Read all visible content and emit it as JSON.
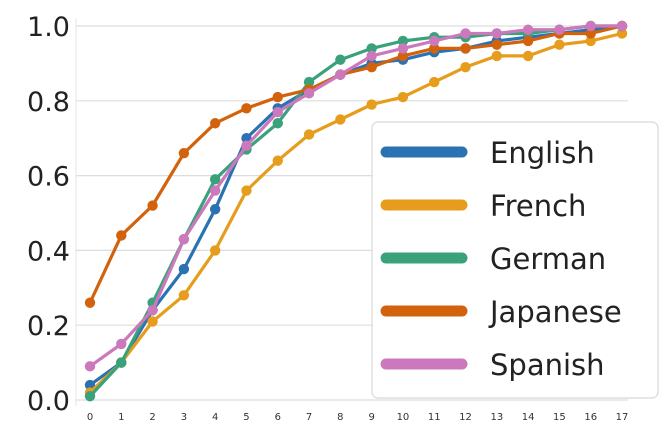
{
  "chart_data": {
    "type": "line",
    "title": "",
    "xlabel": "",
    "ylabel": "",
    "x": [
      0,
      1,
      2,
      3,
      4,
      5,
      6,
      7,
      8,
      9,
      10,
      11,
      12,
      13,
      14,
      15,
      16,
      17
    ],
    "ylim": [
      0.0,
      1.0
    ],
    "xlim": [
      0,
      17
    ],
    "yticks": [
      "0.0",
      "0.2",
      "0.4",
      "0.6",
      "0.8",
      "1.0"
    ],
    "xticks": [
      "0",
      "1",
      "2",
      "3",
      "4",
      "5",
      "6",
      "7",
      "8",
      "9",
      "10",
      "11",
      "12",
      "13",
      "14",
      "15",
      "16",
      "17"
    ],
    "grid": "horizontal",
    "legend_position": "right",
    "series": [
      {
        "name": "English",
        "color": "#2a72b2",
        "values": [
          0.04,
          0.1,
          0.24,
          0.35,
          0.51,
          0.7,
          0.78,
          0.83,
          0.87,
          0.9,
          0.91,
          0.93,
          0.94,
          0.96,
          0.97,
          0.98,
          0.99,
          1.0
        ]
      },
      {
        "name": "French",
        "color": "#e69d1d",
        "values": [
          0.02,
          0.1,
          0.21,
          0.28,
          0.4,
          0.56,
          0.64,
          0.71,
          0.75,
          0.79,
          0.81,
          0.85,
          0.89,
          0.92,
          0.92,
          0.95,
          0.96,
          0.98
        ]
      },
      {
        "name": "German",
        "color": "#3aa27a",
        "values": [
          0.01,
          0.1,
          0.26,
          0.43,
          0.59,
          0.67,
          0.74,
          0.85,
          0.91,
          0.94,
          0.96,
          0.97,
          0.97,
          0.98,
          0.98,
          0.99,
          1.0,
          1.0
        ]
      },
      {
        "name": "Japanese",
        "color": "#d2620c",
        "values": [
          0.26,
          0.44,
          0.52,
          0.66,
          0.74,
          0.78,
          0.81,
          0.83,
          0.87,
          0.89,
          0.92,
          0.94,
          0.94,
          0.95,
          0.96,
          0.98,
          0.98,
          1.0
        ]
      },
      {
        "name": "Spanish",
        "color": "#cc78bc",
        "values": [
          0.09,
          0.15,
          0.24,
          0.43,
          0.56,
          0.68,
          0.77,
          0.82,
          0.87,
          0.92,
          0.94,
          0.96,
          0.98,
          0.98,
          0.99,
          0.99,
          1.0,
          1.0
        ]
      }
    ]
  }
}
